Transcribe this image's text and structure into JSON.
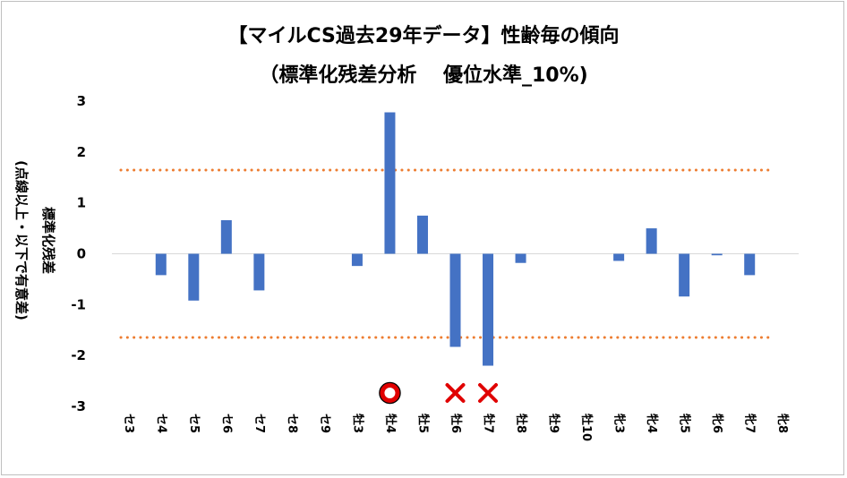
{
  "chart_data": {
    "type": "bar",
    "title": "【マイルCS過去29年データ】性齢毎の傾向",
    "subtitle": "（標準化残差分析　 優位水準_10%)",
    "ylabel_lines": [
      "標準化残差",
      "(点線以上・以下で有意差)"
    ],
    "ylim": [
      -3,
      3
    ],
    "yticks": [
      3,
      2,
      1,
      0,
      -1,
      -2,
      -3
    ],
    "categories": [
      "セ3",
      "セ4",
      "セ5",
      "セ6",
      "セ7",
      "セ8",
      "セ9",
      "牡3",
      "牡4",
      "牡5",
      "牡6",
      "牡7",
      "牡8",
      "牡9",
      "牡10",
      "牝3",
      "牝4",
      "牝5",
      "牝6",
      "牝7",
      "牝8"
    ],
    "values": [
      0,
      -0.42,
      -0.92,
      0.66,
      -0.72,
      0,
      0,
      -0.24,
      2.78,
      0.75,
      -1.83,
      -2.2,
      -0.18,
      0,
      0,
      -0.14,
      0.5,
      -0.84,
      -0.03,
      -0.42,
      0
    ],
    "thresholds": [
      1.645,
      -1.645
    ],
    "markers": [
      {
        "category": "牡4",
        "symbol": "○"
      },
      {
        "category": "牡6",
        "symbol": "×"
      },
      {
        "category": "牡7",
        "symbol": "×"
      }
    ],
    "colors": {
      "bar": "#4472c4",
      "threshold": "#ed7d31",
      "marker": "#e00000"
    },
    "grid": false
  }
}
